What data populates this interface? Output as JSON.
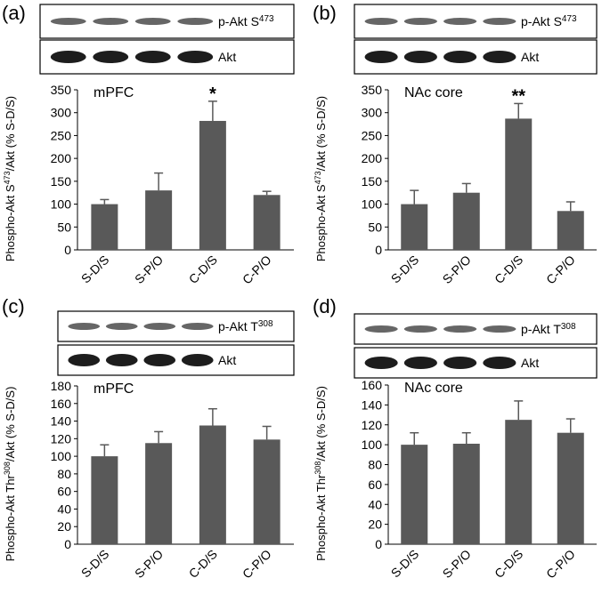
{
  "chart_data": [
    {
      "type": "bar",
      "panel": "(a)",
      "title": "mPFC",
      "blot_labels": [
        {
          "text": "p-Akt S",
          "sup": "473"
        },
        {
          "text": "Akt"
        }
      ],
      "ylabel": {
        "before": "Phospho-Akt S",
        "sup": "473",
        "after": "/Akt (% S-D/S)"
      },
      "categories": [
        "S-D/S",
        "S-P/O",
        "C-D/S",
        "C-P/O"
      ],
      "values": [
        100,
        130,
        282,
        120
      ],
      "errors": [
        10,
        38,
        43,
        8
      ],
      "significance": [
        null,
        null,
        "*",
        null
      ],
      "color": "#595959",
      "ylim": [
        0,
        350
      ],
      "yticks": [
        0,
        50,
        100,
        150,
        200,
        250,
        300,
        350
      ]
    },
    {
      "type": "bar",
      "panel": "(b)",
      "title": "NAc core",
      "blot_labels": [
        {
          "text": "p-Akt S",
          "sup": "473"
        },
        {
          "text": "Akt"
        }
      ],
      "ylabel": {
        "before": "Phospho-Akt S",
        "sup": "473",
        "after": "/Akt (% S-D/S)"
      },
      "categories": [
        "S-D/S",
        "S-P/O",
        "C-D/S",
        "C-P/O"
      ],
      "values": [
        100,
        125,
        287,
        85
      ],
      "errors": [
        30,
        20,
        33,
        20
      ],
      "significance": [
        null,
        null,
        "**",
        null
      ],
      "color": "#595959",
      "ylim": [
        0,
        350
      ],
      "yticks": [
        0,
        50,
        100,
        150,
        200,
        250,
        300,
        350
      ]
    },
    {
      "type": "bar",
      "panel": "(c)",
      "title": "mPFC",
      "blot_labels": [
        {
          "text": "p-Akt T",
          "sup": "308"
        },
        {
          "text": "Akt"
        }
      ],
      "ylabel": {
        "before": "Phospho-Akt Thr",
        "sup": "308",
        "after": "/Akt (% S-D/S)"
      },
      "categories": [
        "S-D/S",
        "S-P/O",
        "C-D/S",
        "C-P/O"
      ],
      "values": [
        100,
        115,
        135,
        119
      ],
      "errors": [
        13,
        13,
        19,
        15
      ],
      "significance": [
        null,
        null,
        null,
        null
      ],
      "color": "#595959",
      "ylim": [
        0,
        180
      ],
      "yticks": [
        0,
        20,
        40,
        60,
        80,
        100,
        120,
        140,
        160,
        180
      ]
    },
    {
      "type": "bar",
      "panel": "(d)",
      "title": "NAc core",
      "blot_labels": [
        {
          "text": "p-Akt T",
          "sup": "308"
        },
        {
          "text": "Akt"
        }
      ],
      "ylabel": {
        "before": "Phospho-Akt Thr",
        "sup": "308",
        "after": "/Akt (% S-D/S)"
      },
      "categories": [
        "S-D/S",
        "S-P/O",
        "C-D/S",
        "C-P/O"
      ],
      "values": [
        100,
        101,
        125,
        112
      ],
      "errors": [
        12,
        11,
        19,
        14
      ],
      "significance": [
        null,
        null,
        null,
        null
      ],
      "color": "#595959",
      "ylim": [
        0,
        160
      ],
      "yticks": [
        0,
        20,
        40,
        60,
        80,
        100,
        120,
        140,
        160
      ]
    }
  ]
}
